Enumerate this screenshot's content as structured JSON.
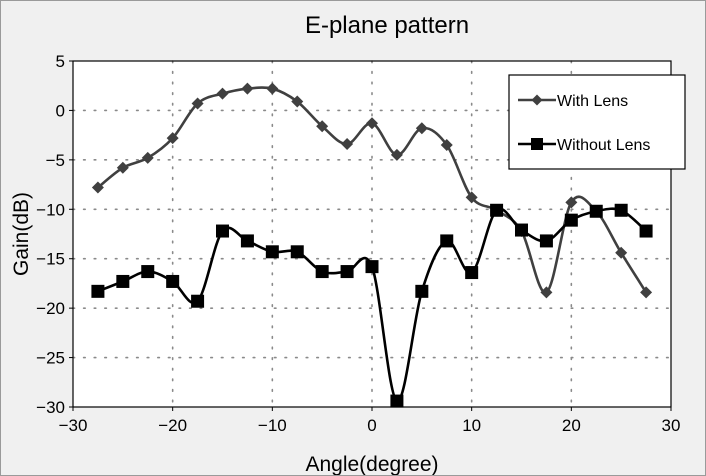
{
  "chart_data": {
    "type": "line",
    "title": "E-plane pattern",
    "xlabel": "Angle(degree)",
    "ylabel": "Gain(dB)",
    "xlim": [
      -30,
      30
    ],
    "ylim": [
      -30,
      5
    ],
    "xticks": [
      -30,
      -20,
      -10,
      0,
      10,
      20,
      30
    ],
    "yticks": [
      5,
      0,
      -5,
      -10,
      -15,
      -20,
      -25,
      -30
    ],
    "grid": "dotted",
    "legend_position": "top-right",
    "series": [
      {
        "name": "With Lens",
        "marker": "diamond",
        "color": "#404040",
        "x": [
          -27.5,
          -25,
          -22.5,
          -20,
          -17.5,
          -15,
          -12.5,
          -10,
          -7.5,
          -5,
          -2.5,
          0,
          2.5,
          5,
          7.5,
          10,
          12.5,
          15,
          17.5,
          20,
          22.5,
          25,
          27.5
        ],
        "y": [
          -7.8,
          -5.8,
          -4.8,
          -2.8,
          0.7,
          1.7,
          2.2,
          2.2,
          0.9,
          -1.6,
          -3.4,
          -1.3,
          -4.5,
          -1.8,
          -3.5,
          -8.8,
          -10.1,
          -12.2,
          -18.4,
          -9.3,
          -10.2,
          -14.4,
          -18.4
        ]
      },
      {
        "name": "Without Lens",
        "marker": "square",
        "color": "#000000",
        "x": [
          -27.5,
          -25,
          -22.5,
          -20,
          -17.5,
          -15,
          -12.5,
          -10,
          -7.5,
          -5,
          -2.5,
          0,
          2.5,
          5,
          7.5,
          10,
          12.5,
          15,
          17.5,
          20,
          22.5,
          25,
          27.5
        ],
        "y": [
          -18.3,
          -17.3,
          -16.3,
          -17.3,
          -19.3,
          -12.2,
          -13.2,
          -14.3,
          -14.3,
          -16.3,
          -16.3,
          -15.8,
          -29.4,
          -18.3,
          -13.2,
          -16.4,
          -10.1,
          -12.1,
          -13.2,
          -11.1,
          -10.2,
          -10.1,
          -12.2
        ]
      }
    ]
  }
}
